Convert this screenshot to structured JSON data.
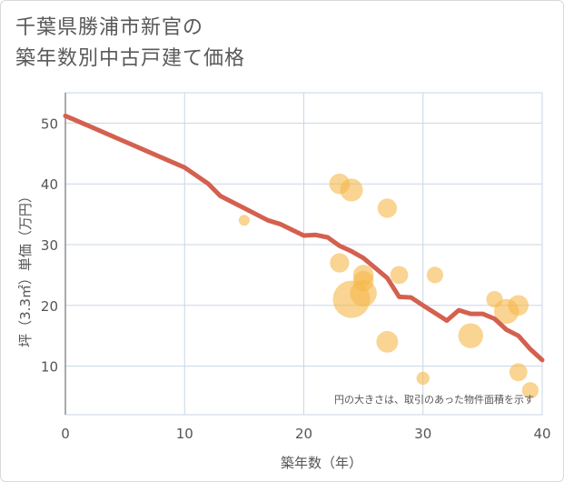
{
  "title_lines": [
    "千葉県勝浦市新官の",
    "築年数別中古戸建て価格"
  ],
  "chart_data": {
    "type": "scatter",
    "title": "千葉県勝浦市新官の築年数別中古戸建て価格",
    "xlabel": "築年数（年）",
    "ylabel": "坪（3.3㎡）単価（万円）",
    "xlim": [
      0,
      40
    ],
    "ylim": [
      2,
      55
    ],
    "xticks": [
      0,
      10,
      20,
      30,
      40
    ],
    "yticks": [
      10,
      20,
      30,
      40,
      50
    ],
    "grid": true,
    "note": "円の大きさは、取引のあった物件面積を示す",
    "colors": {
      "bubble": "#f5b84a",
      "line": "#d4604f",
      "grid": "#c9d6e3"
    },
    "scatter": [
      {
        "x": 15,
        "y": 34,
        "size": 1
      },
      {
        "x": 23,
        "y": 40,
        "size": 4
      },
      {
        "x": 24,
        "y": 39,
        "size": 5
      },
      {
        "x": 27,
        "y": 36,
        "size": 3.5
      },
      {
        "x": 23,
        "y": 27,
        "size": 3.5
      },
      {
        "x": 25,
        "y": 25,
        "size": 4
      },
      {
        "x": 25,
        "y": 24,
        "size": 4
      },
      {
        "x": 24,
        "y": 21,
        "size": 14
      },
      {
        "x": 25,
        "y": 22,
        "size": 7
      },
      {
        "x": 28,
        "y": 25,
        "size": 3
      },
      {
        "x": 31,
        "y": 25,
        "size": 2.5
      },
      {
        "x": 27,
        "y": 14,
        "size": 4.5
      },
      {
        "x": 30,
        "y": 8,
        "size": 1.5
      },
      {
        "x": 34,
        "y": 15,
        "size": 6
      },
      {
        "x": 36,
        "y": 21,
        "size": 2.5
      },
      {
        "x": 37,
        "y": 19,
        "size": 6
      },
      {
        "x": 38,
        "y": 20,
        "size": 4
      },
      {
        "x": 38,
        "y": 9,
        "size": 3
      },
      {
        "x": 39,
        "y": 6,
        "size": 2.5
      }
    ],
    "line": [
      {
        "x": 0,
        "y": 51.2
      },
      {
        "x": 2,
        "y": 49.5
      },
      {
        "x": 4,
        "y": 47.8
      },
      {
        "x": 6,
        "y": 46.1
      },
      {
        "x": 8,
        "y": 44.4
      },
      {
        "x": 10,
        "y": 42.7
      },
      {
        "x": 12,
        "y": 40.0
      },
      {
        "x": 13,
        "y": 38.0
      },
      {
        "x": 15,
        "y": 36.0
      },
      {
        "x": 17,
        "y": 34.0
      },
      {
        "x": 18,
        "y": 33.4
      },
      {
        "x": 20,
        "y": 31.5
      },
      {
        "x": 21,
        "y": 31.6
      },
      {
        "x": 22,
        "y": 31.2
      },
      {
        "x": 23,
        "y": 29.8
      },
      {
        "x": 24,
        "y": 28.9
      },
      {
        "x": 25,
        "y": 27.8
      },
      {
        "x": 27,
        "y": 24.5
      },
      {
        "x": 28,
        "y": 21.4
      },
      {
        "x": 29,
        "y": 21.3
      },
      {
        "x": 30,
        "y": 20.0
      },
      {
        "x": 32,
        "y": 17.5
      },
      {
        "x": 33,
        "y": 19.2
      },
      {
        "x": 34,
        "y": 18.6
      },
      {
        "x": 35,
        "y": 18.6
      },
      {
        "x": 36,
        "y": 17.8
      },
      {
        "x": 37,
        "y": 16.0
      },
      {
        "x": 38,
        "y": 15.0
      },
      {
        "x": 39,
        "y": 12.8
      },
      {
        "x": 40,
        "y": 11.0
      }
    ]
  }
}
